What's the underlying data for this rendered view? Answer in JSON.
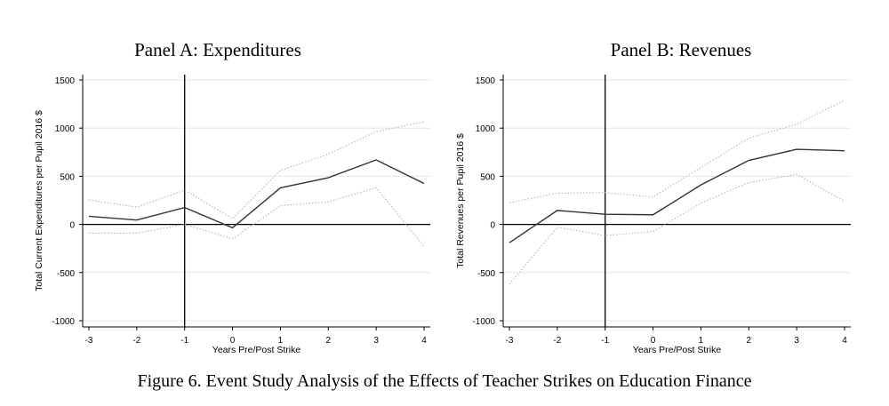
{
  "caption": "Figure 6. Event Study Analysis of the Effects of Teacher Strikes on Education Finance",
  "chart_data": [
    {
      "type": "line",
      "title": "Panel A: Expenditures",
      "xlabel": "Years Pre/Post Strike",
      "ylabel": "Total Current Expenditures per Pupil 2016 $",
      "x": [
        -3,
        -2,
        -1,
        0,
        1,
        2,
        3,
        4
      ],
      "xticks": [
        "-3",
        "-2",
        "-1",
        "0",
        "1",
        "2",
        "3",
        "4"
      ],
      "yticks": [
        "-1000",
        "-500",
        "0",
        "500",
        "1000",
        "1500"
      ],
      "xlim": [
        -3,
        4
      ],
      "ylim": [
        -1000,
        1500
      ],
      "reference_lines": {
        "vertical_x": -1,
        "horizontal_y": 0
      },
      "grid": "horizontal",
      "series": [
        {
          "style": "solid",
          "color": "#333333",
          "values": [
            85,
            45,
            175,
            -35,
            380,
            485,
            670,
            425
          ]
        },
        {
          "style": "dotted",
          "color": "#bbbbbb",
          "values": [
            255,
            180,
            355,
            60,
            560,
            730,
            965,
            1065
          ]
        },
        {
          "style": "dotted",
          "color": "#bbbbbb",
          "values": [
            -90,
            -90,
            0,
            -150,
            195,
            235,
            380,
            -230
          ]
        }
      ]
    },
    {
      "type": "line",
      "title": "Panel B: Revenues",
      "xlabel": "Years Pre/Post Strike",
      "ylabel": "Total Revenues per Pupil 2016 $",
      "x": [
        -3,
        -2,
        -1,
        0,
        1,
        2,
        3,
        4
      ],
      "xticks": [
        "-3",
        "-2",
        "-1",
        "0",
        "1",
        "2",
        "3",
        "4"
      ],
      "yticks": [
        "-1000",
        "-500",
        "0",
        "500",
        "1000",
        "1500"
      ],
      "xlim": [
        -3,
        4
      ],
      "ylim": [
        -1000,
        1500
      ],
      "reference_lines": {
        "vertical_x": -1,
        "horizontal_y": 0
      },
      "grid": "horizontal",
      "series": [
        {
          "style": "solid",
          "color": "#333333",
          "values": [
            -190,
            145,
            105,
            100,
            410,
            665,
            780,
            765
          ]
        },
        {
          "style": "dotted",
          "color": "#bbbbbb",
          "values": [
            225,
            325,
            330,
            285,
            590,
            895,
            1040,
            1290
          ]
        },
        {
          "style": "dotted",
          "color": "#bbbbbb",
          "values": [
            -620,
            -30,
            -115,
            -75,
            220,
            435,
            520,
            240
          ]
        }
      ]
    }
  ]
}
